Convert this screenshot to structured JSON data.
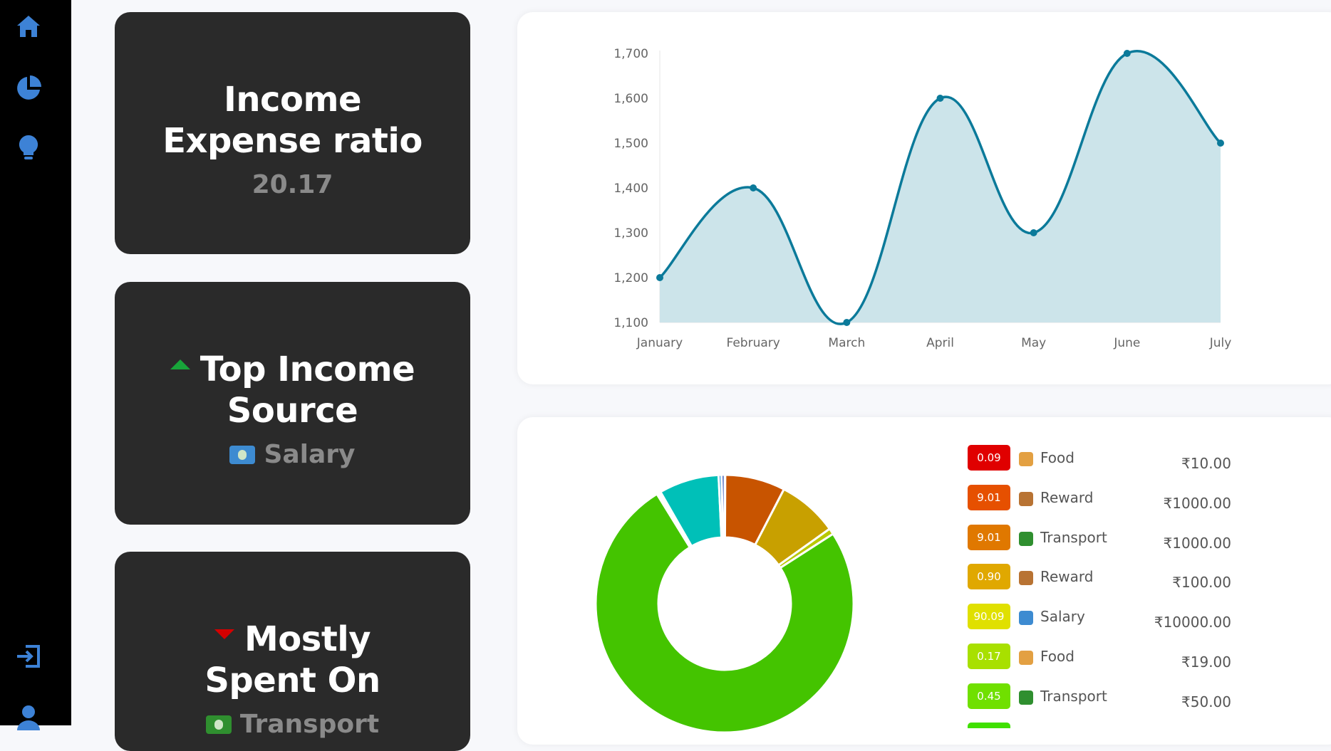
{
  "sidebar": {
    "items": [
      {
        "icon": "home-icon"
      },
      {
        "icon": "pie-chart-icon"
      },
      {
        "icon": "lightbulb-icon"
      },
      {
        "icon": "logout-icon"
      },
      {
        "icon": "user-icon"
      }
    ]
  },
  "cards": [
    {
      "title": "Income Expense ratio",
      "value": "20.17"
    },
    {
      "title": "Top Income Source",
      "value": "Salary"
    },
    {
      "title": "Mostly Spent On",
      "value": "Transport"
    }
  ],
  "chart_data": [
    {
      "type": "area",
      "title": "",
      "categories": [
        "January",
        "February",
        "March",
        "April",
        "May",
        "June",
        "July"
      ],
      "values": [
        1200,
        1400,
        1100,
        1600,
        1300,
        1700,
        1500
      ],
      "yticks": [
        1100,
        1200,
        1300,
        1400,
        1500,
        1600,
        1700
      ],
      "ytick_labels": [
        "1,100",
        "1,200",
        "1,300",
        "1,400",
        "1,500",
        "1,600",
        "1,700"
      ],
      "ylim": [
        1100,
        1700
      ],
      "line_color": "#0b7a9a",
      "fill_color": "#cce4ea"
    },
    {
      "type": "pie",
      "subtype": "doughnut",
      "slices": [
        {
          "label": "Food",
          "value": 0.09,
          "color": "#e60000"
        },
        {
          "label": "Reward",
          "value": 9.01,
          "color": "#c85400"
        },
        {
          "label": "Transport",
          "value": 9.01,
          "color": "#c8a000"
        },
        {
          "label": "Reward",
          "value": 0.9,
          "color": "#b8c800"
        },
        {
          "label": "Salary",
          "value": 90.09,
          "color": "#44c400"
        },
        {
          "label": "Food",
          "value": 0.17,
          "color": "#0b7a1a"
        },
        {
          "label": "Transport",
          "value": 0.45,
          "color": "#ffffff"
        },
        {
          "label": "",
          "value": 9.01,
          "color": "#00c0b8"
        },
        {
          "label": "",
          "value": 0.45,
          "color": "#1e8fd6"
        },
        {
          "label": "",
          "value": 0.45,
          "color": "#1034a6"
        }
      ]
    }
  ],
  "legend": [
    {
      "ratio": "0.09",
      "label": "Food",
      "amount": "₹10.00",
      "badge_color": "#e00000",
      "icon": "burger-icon",
      "icon_color": "#e3a042"
    },
    {
      "ratio": "9.01",
      "label": "Reward",
      "amount": "₹1000.00",
      "badge_color": "#e65000",
      "icon": "trophy-icon",
      "icon_color": "#b87333"
    },
    {
      "ratio": "9.01",
      "label": "Transport",
      "amount": "₹1000.00",
      "badge_color": "#e07800",
      "icon": "rickshaw-icon",
      "icon_color": "#2f8f2f"
    },
    {
      "ratio": "0.90",
      "label": "Reward",
      "amount": "₹100.00",
      "badge_color": "#e0a800",
      "icon": "trophy-icon",
      "icon_color": "#b87333"
    },
    {
      "ratio": "90.09",
      "label": "Salary",
      "amount": "₹10000.00",
      "badge_color": "#e0e000",
      "icon": "money-icon",
      "icon_color": "#3d8bd1"
    },
    {
      "ratio": "0.17",
      "label": "Food",
      "amount": "₹19.00",
      "badge_color": "#a8e000",
      "icon": "burger-icon",
      "icon_color": "#e3a042"
    },
    {
      "ratio": "0.45",
      "label": "Transport",
      "amount": "₹50.00",
      "badge_color": "#70e000",
      "icon": "rickshaw-icon",
      "icon_color": "#2f8f2f"
    }
  ]
}
